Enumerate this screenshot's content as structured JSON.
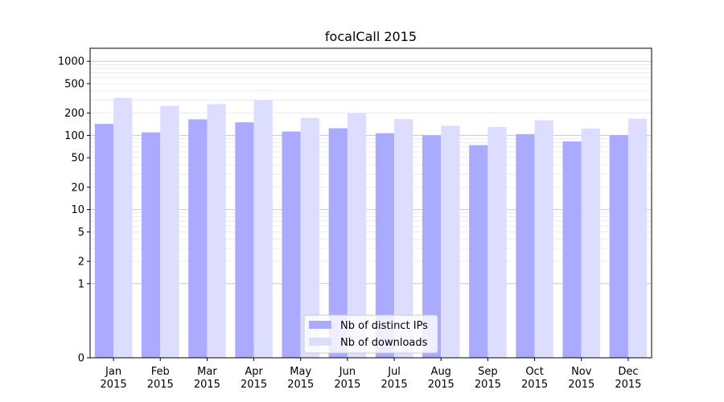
{
  "chart_data": {
    "type": "bar",
    "title": "focalCall 2015",
    "xlabel": "",
    "ylabel": "",
    "y_scale": "symlog",
    "ylim": [
      0,
      1500
    ],
    "y_ticks": [
      {
        "value": 0,
        "label": "0"
      },
      {
        "value": 1,
        "label": "1"
      },
      {
        "value": 2,
        "label": "2"
      },
      {
        "value": 5,
        "label": "5"
      },
      {
        "value": 10,
        "label": "10"
      },
      {
        "value": 20,
        "label": "20"
      },
      {
        "value": 50,
        "label": "50"
      },
      {
        "value": 100,
        "label": "100"
      },
      {
        "value": 200,
        "label": "200"
      },
      {
        "value": 500,
        "label": "500"
      },
      {
        "value": 1000,
        "label": "1000"
      }
    ],
    "categories": [
      [
        "Jan",
        "2015"
      ],
      [
        "Feb",
        "2015"
      ],
      [
        "Mar",
        "2015"
      ],
      [
        "Apr",
        "2015"
      ],
      [
        "May",
        "2015"
      ],
      [
        "Jun",
        "2015"
      ],
      [
        "Jul",
        "2015"
      ],
      [
        "Aug",
        "2015"
      ],
      [
        "Sep",
        "2015"
      ],
      [
        "Oct",
        "2015"
      ],
      [
        "Nov",
        "2015"
      ],
      [
        "Dec",
        "2015"
      ]
    ],
    "series": [
      {
        "name": "Nb of distinct IPs",
        "color": "#aaaaff",
        "values": [
          143,
          110,
          165,
          150,
          113,
          125,
          107,
          100,
          74,
          104,
          83,
          101
        ]
      },
      {
        "name": "Nb of downloads",
        "color": "#ddddff",
        "values": [
          320,
          250,
          265,
          300,
          172,
          200,
          166,
          135,
          130,
          160,
          124,
          168
        ]
      }
    ],
    "grid": true,
    "legend_position": "bottom-center"
  }
}
